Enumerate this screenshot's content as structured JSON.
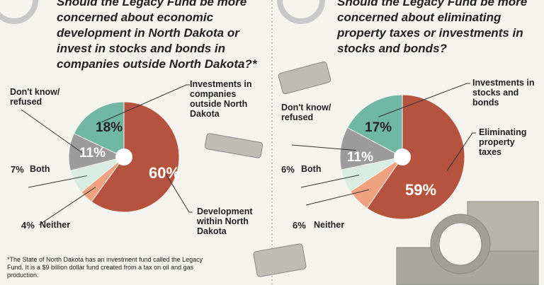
{
  "chart_data": [
    {
      "type": "pie",
      "title": "Should the Legacy Fund be more concerned about economic development in North Dakota or invest in stocks and bonds in companies outside North Dakota?*",
      "categories": [
        "Development within North Dakota",
        "Neither",
        "Both",
        "Don't know/ refused",
        "Investments in companies outside North Dakota"
      ],
      "values": [
        60,
        4,
        7,
        11,
        18
      ],
      "value_labels": [
        "60%",
        "4%",
        "7%",
        "11%",
        "18%"
      ],
      "colors": [
        "#b5533f",
        "#f0a27e",
        "#d8ece4",
        "#9b9b9b",
        "#6fb7a3"
      ]
    },
    {
      "type": "pie",
      "title": "Should the Legacy Fund be more concerned about eliminating property taxes or investments in stocks and bonds?",
      "categories": [
        "Eliminating property taxes",
        "Neither",
        "Both",
        "Don't know/ refused",
        "Investments in stocks and bonds"
      ],
      "values": [
        59,
        6,
        6,
        11,
        17
      ],
      "value_labels": [
        "59%",
        "6%",
        "6%",
        "11%",
        "17%"
      ],
      "colors": [
        "#b5533f",
        "#f0a27e",
        "#d8ece4",
        "#9b9b9b",
        "#6fb7a3"
      ]
    }
  ],
  "footnote": "*The State of North Dakota has an investment fund called the Legacy Fund. It is a $9 billion dollar fund created from a tax on oil and gas production."
}
